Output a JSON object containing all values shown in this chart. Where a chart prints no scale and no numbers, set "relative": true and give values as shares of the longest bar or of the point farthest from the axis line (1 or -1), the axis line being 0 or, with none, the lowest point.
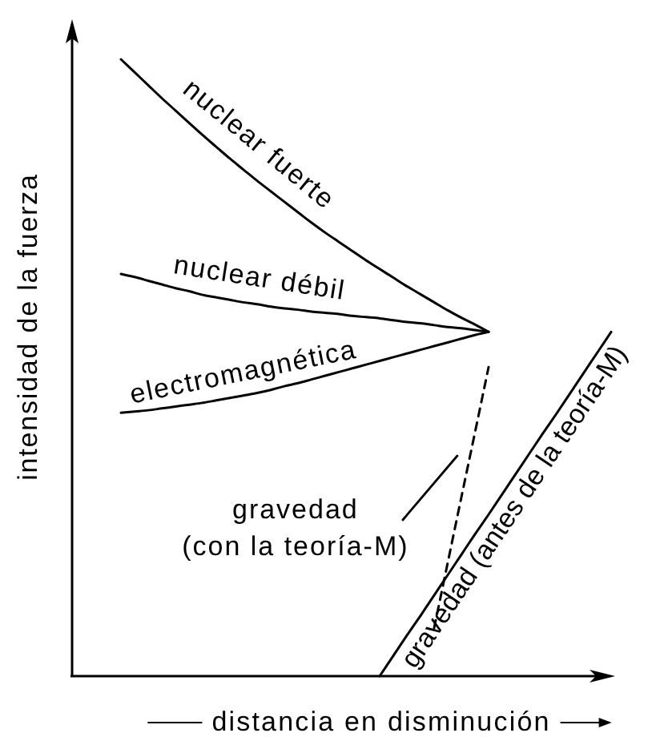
{
  "chart_data": {
    "type": "line",
    "relative": true,
    "xlabel": "distancia en disminución",
    "ylabel": "intensidad de la fuerza",
    "categories": [
      null,
      null,
      null,
      null,
      null,
      null,
      null,
      null,
      null,
      null,
      null,
      null,
      null,
      null,
      null,
      null,
      null,
      null,
      null,
      null,
      null,
      null,
      null,
      null,
      null,
      null,
      null,
      null,
      null,
      null,
      null,
      null,
      null,
      null,
      null,
      null,
      null
    ],
    "series": [
      {
        "name": "nuclear fuerte",
        "color": "#000000",
        "values": [
          1,
          0.979,
          0.958,
          0.937,
          0.917,
          0.897,
          0.877,
          0.858,
          0.839,
          0.821,
          0.803,
          0.786,
          0.769,
          0.752,
          0.735,
          0.719,
          0.704,
          0.689,
          0.674,
          0.66,
          0.646,
          0.632,
          0.619,
          0.606,
          0.593,
          0.581,
          0.57,
          0.558,
          null,
          null,
          null,
          null,
          null,
          null,
          null,
          null,
          null
        ]
      },
      {
        "name": "nuclear débil",
        "color": "#000000",
        "values": [
          0.652,
          0.647,
          0.641,
          0.635,
          0.629,
          0.624,
          0.618,
          0.614,
          0.61,
          0.606,
          0.603,
          0.599,
          0.596,
          0.594,
          0.591,
          0.589,
          0.587,
          0.584,
          0.582,
          0.58,
          0.577,
          0.574,
          0.572,
          0.569,
          0.566,
          0.564,
          0.561,
          0.558,
          null,
          null,
          null,
          null,
          null,
          null,
          null,
          null,
          null
        ]
      },
      {
        "name": "electromagnética",
        "color": "#000000",
        "values": [
          0.427,
          0.429,
          0.431,
          0.434,
          0.437,
          0.44,
          0.443,
          0.447,
          0.451,
          0.455,
          0.459,
          0.464,
          0.47,
          0.475,
          0.481,
          0.487,
          0.493,
          0.499,
          0.505,
          0.511,
          0.517,
          0.523,
          0.529,
          0.535,
          0.541,
          0.547,
          0.553,
          0.558,
          null,
          null,
          null,
          null,
          null,
          null,
          null,
          null,
          null
        ]
      },
      {
        "name": "gravedad (con la teoría-M)",
        "color": "#000000",
        "line_style": "dashed",
        "values": [
          null,
          null,
          null,
          null,
          null,
          null,
          null,
          null,
          null,
          null,
          null,
          null,
          null,
          null,
          null,
          null,
          null,
          null,
          null,
          null,
          null,
          null,
          null,
          0.078,
          0.184,
          0.29,
          0.395,
          0.501,
          null,
          null,
          null,
          null,
          null,
          null,
          null,
          null,
          null
        ]
      },
      {
        "name": "gravedad (antes de la teoría-M)",
        "color": "#000000",
        "values": [
          null,
          null,
          null,
          null,
          null,
          null,
          null,
          null,
          null,
          null,
          null,
          null,
          null,
          null,
          null,
          null,
          null,
          null,
          null,
          0,
          0.033,
          0.066,
          0.098,
          0.131,
          0.164,
          0.197,
          0.23,
          0.262,
          0.295,
          0.328,
          0.361,
          0.394,
          0.426,
          0.459,
          0.492,
          0.525,
          0.558
        ]
      }
    ]
  }
}
